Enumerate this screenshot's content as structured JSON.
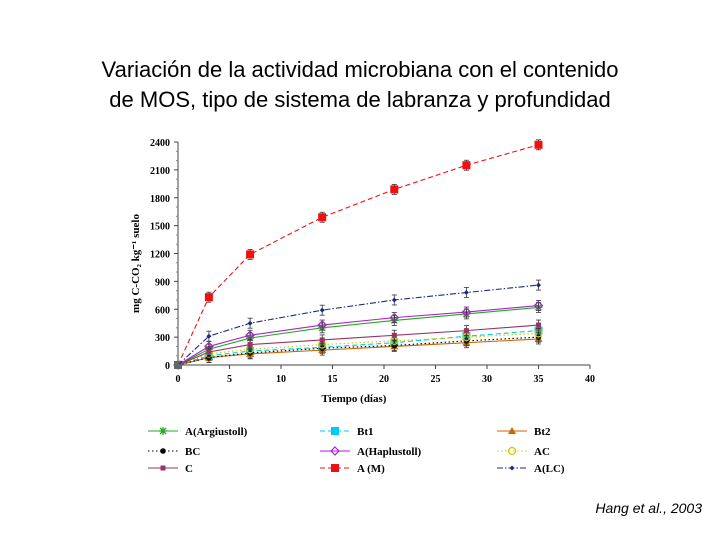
{
  "title": {
    "line1": "Variación de la actividad microbiana con el contenido",
    "line2": "de MOS, tipo de sistema de labranza y profundidad"
  },
  "citation": "Hang et al., 2003",
  "chart_data": {
    "type": "line",
    "xlabel": "Tiempo (días)",
    "ylabel": "mg C-CO₂ kg⁻¹ suelo",
    "xlim": [
      0,
      40
    ],
    "ylim": [
      0,
      2400
    ],
    "xticks": [
      0,
      5,
      10,
      15,
      20,
      25,
      30,
      35,
      40
    ],
    "yticks": [
      0,
      300,
      600,
      900,
      1200,
      1500,
      1800,
      2100,
      2400
    ],
    "grid": false,
    "legend_position": "bottom",
    "x": [
      0,
      3,
      7,
      14,
      21,
      28,
      35
    ],
    "series": [
      {
        "name": "A(Argiustoll)",
        "color": "#22aa22",
        "marker": "asterisk",
        "dash": "solid",
        "values": [
          0,
          170,
          290,
          400,
          480,
          550,
          620
        ]
      },
      {
        "name": "Bt1",
        "color": "#00ccee",
        "marker": "square",
        "dash": "dash",
        "values": [
          0,
          100,
          150,
          190,
          240,
          310,
          370
        ]
      },
      {
        "name": "Bt2",
        "color": "#cc6600",
        "marker": "triangle",
        "dash": "solid",
        "values": [
          0,
          80,
          120,
          160,
          200,
          240,
          280
        ]
      },
      {
        "name": "BC",
        "color": "#000000",
        "marker": "circle",
        "dash": "dot",
        "values": [
          0,
          80,
          130,
          180,
          210,
          260,
          300
        ]
      },
      {
        "name": "A(Haplustoll)",
        "color": "#aa22cc",
        "marker": "diamond",
        "dash": "solid",
        "values": [
          0,
          200,
          320,
          430,
          510,
          570,
          640
        ]
      },
      {
        "name": "AC",
        "color": "#cccc00",
        "marker": "circle-open",
        "dash": "dot",
        "values": [
          0,
          120,
          170,
          220,
          260,
          300,
          340
        ]
      },
      {
        "name": "C",
        "color": "#993366",
        "marker": "square-small",
        "dash": "solid",
        "values": [
          0,
          140,
          220,
          270,
          320,
          370,
          430
        ]
      },
      {
        "name": "A (M)",
        "color": "#ee1111",
        "marker": "square",
        "dash": "dash",
        "values": [
          0,
          730,
          1190,
          1590,
          1890,
          2150,
          2370
        ]
      },
      {
        "name": "A(LC)",
        "color": "#1a2a88",
        "marker": "diamond-small",
        "dash": "dashdot",
        "values": [
          0,
          310,
          450,
          590,
          700,
          780,
          860
        ]
      }
    ]
  }
}
